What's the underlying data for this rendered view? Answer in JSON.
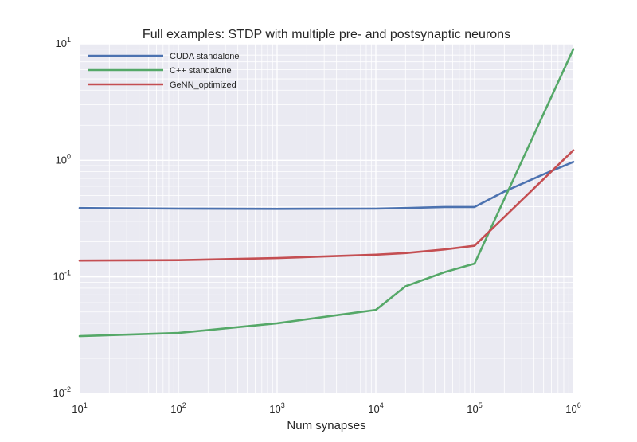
{
  "chart_data": {
    "type": "line",
    "title": "Full examples: STDP with multiple pre- and postsynaptic neurons",
    "xlabel": "Num synapses",
    "ylabel": "",
    "xscale": "log",
    "yscale": "log",
    "xlim": [
      10,
      1000000
    ],
    "ylim": [
      0.01,
      10
    ],
    "x_ticks": [
      {
        "base": "10",
        "exp": "1",
        "value": 10
      },
      {
        "base": "10",
        "exp": "2",
        "value": 100
      },
      {
        "base": "10",
        "exp": "3",
        "value": 1000
      },
      {
        "base": "10",
        "exp": "4",
        "value": 10000
      },
      {
        "base": "10",
        "exp": "5",
        "value": 100000
      },
      {
        "base": "10",
        "exp": "6",
        "value": 1000000
      }
    ],
    "y_ticks": [
      {
        "base": "10",
        "exp": "-2",
        "value": 0.01
      },
      {
        "base": "10",
        "exp": "-1",
        "value": 0.1
      },
      {
        "base": "10",
        "exp": "0",
        "value": 1
      },
      {
        "base": "10",
        "exp": "1",
        "value": 10
      }
    ],
    "grid": true,
    "legend_position": "top-left",
    "background": "#EAEAF2",
    "series": [
      {
        "name": "CUDA standalone",
        "color": "#4C72B0",
        "points": [
          [
            10,
            0.39
          ],
          [
            100,
            0.385
          ],
          [
            1000,
            0.383
          ],
          [
            10000,
            0.385
          ],
          [
            20000,
            0.39
          ],
          [
            50000,
            0.398
          ],
          [
            100000,
            0.398
          ],
          [
            200000,
            0.54
          ],
          [
            500000,
            0.76
          ],
          [
            1000000,
            0.97
          ]
        ]
      },
      {
        "name": "C++ standalone",
        "color": "#55A868",
        "points": [
          [
            10,
            0.031
          ],
          [
            100,
            0.033
          ],
          [
            1000,
            0.04
          ],
          [
            10000,
            0.052
          ],
          [
            20000,
            0.083
          ],
          [
            50000,
            0.11
          ],
          [
            100000,
            0.13
          ],
          [
            1000000,
            9.0
          ]
        ]
      },
      {
        "name": "GeNN_optimized",
        "color": "#C44E52",
        "points": [
          [
            10,
            0.138
          ],
          [
            100,
            0.139
          ],
          [
            1000,
            0.145
          ],
          [
            10000,
            0.155
          ],
          [
            20000,
            0.16
          ],
          [
            50000,
            0.172
          ],
          [
            100000,
            0.185
          ],
          [
            1000000,
            1.22
          ]
        ]
      }
    ]
  }
}
